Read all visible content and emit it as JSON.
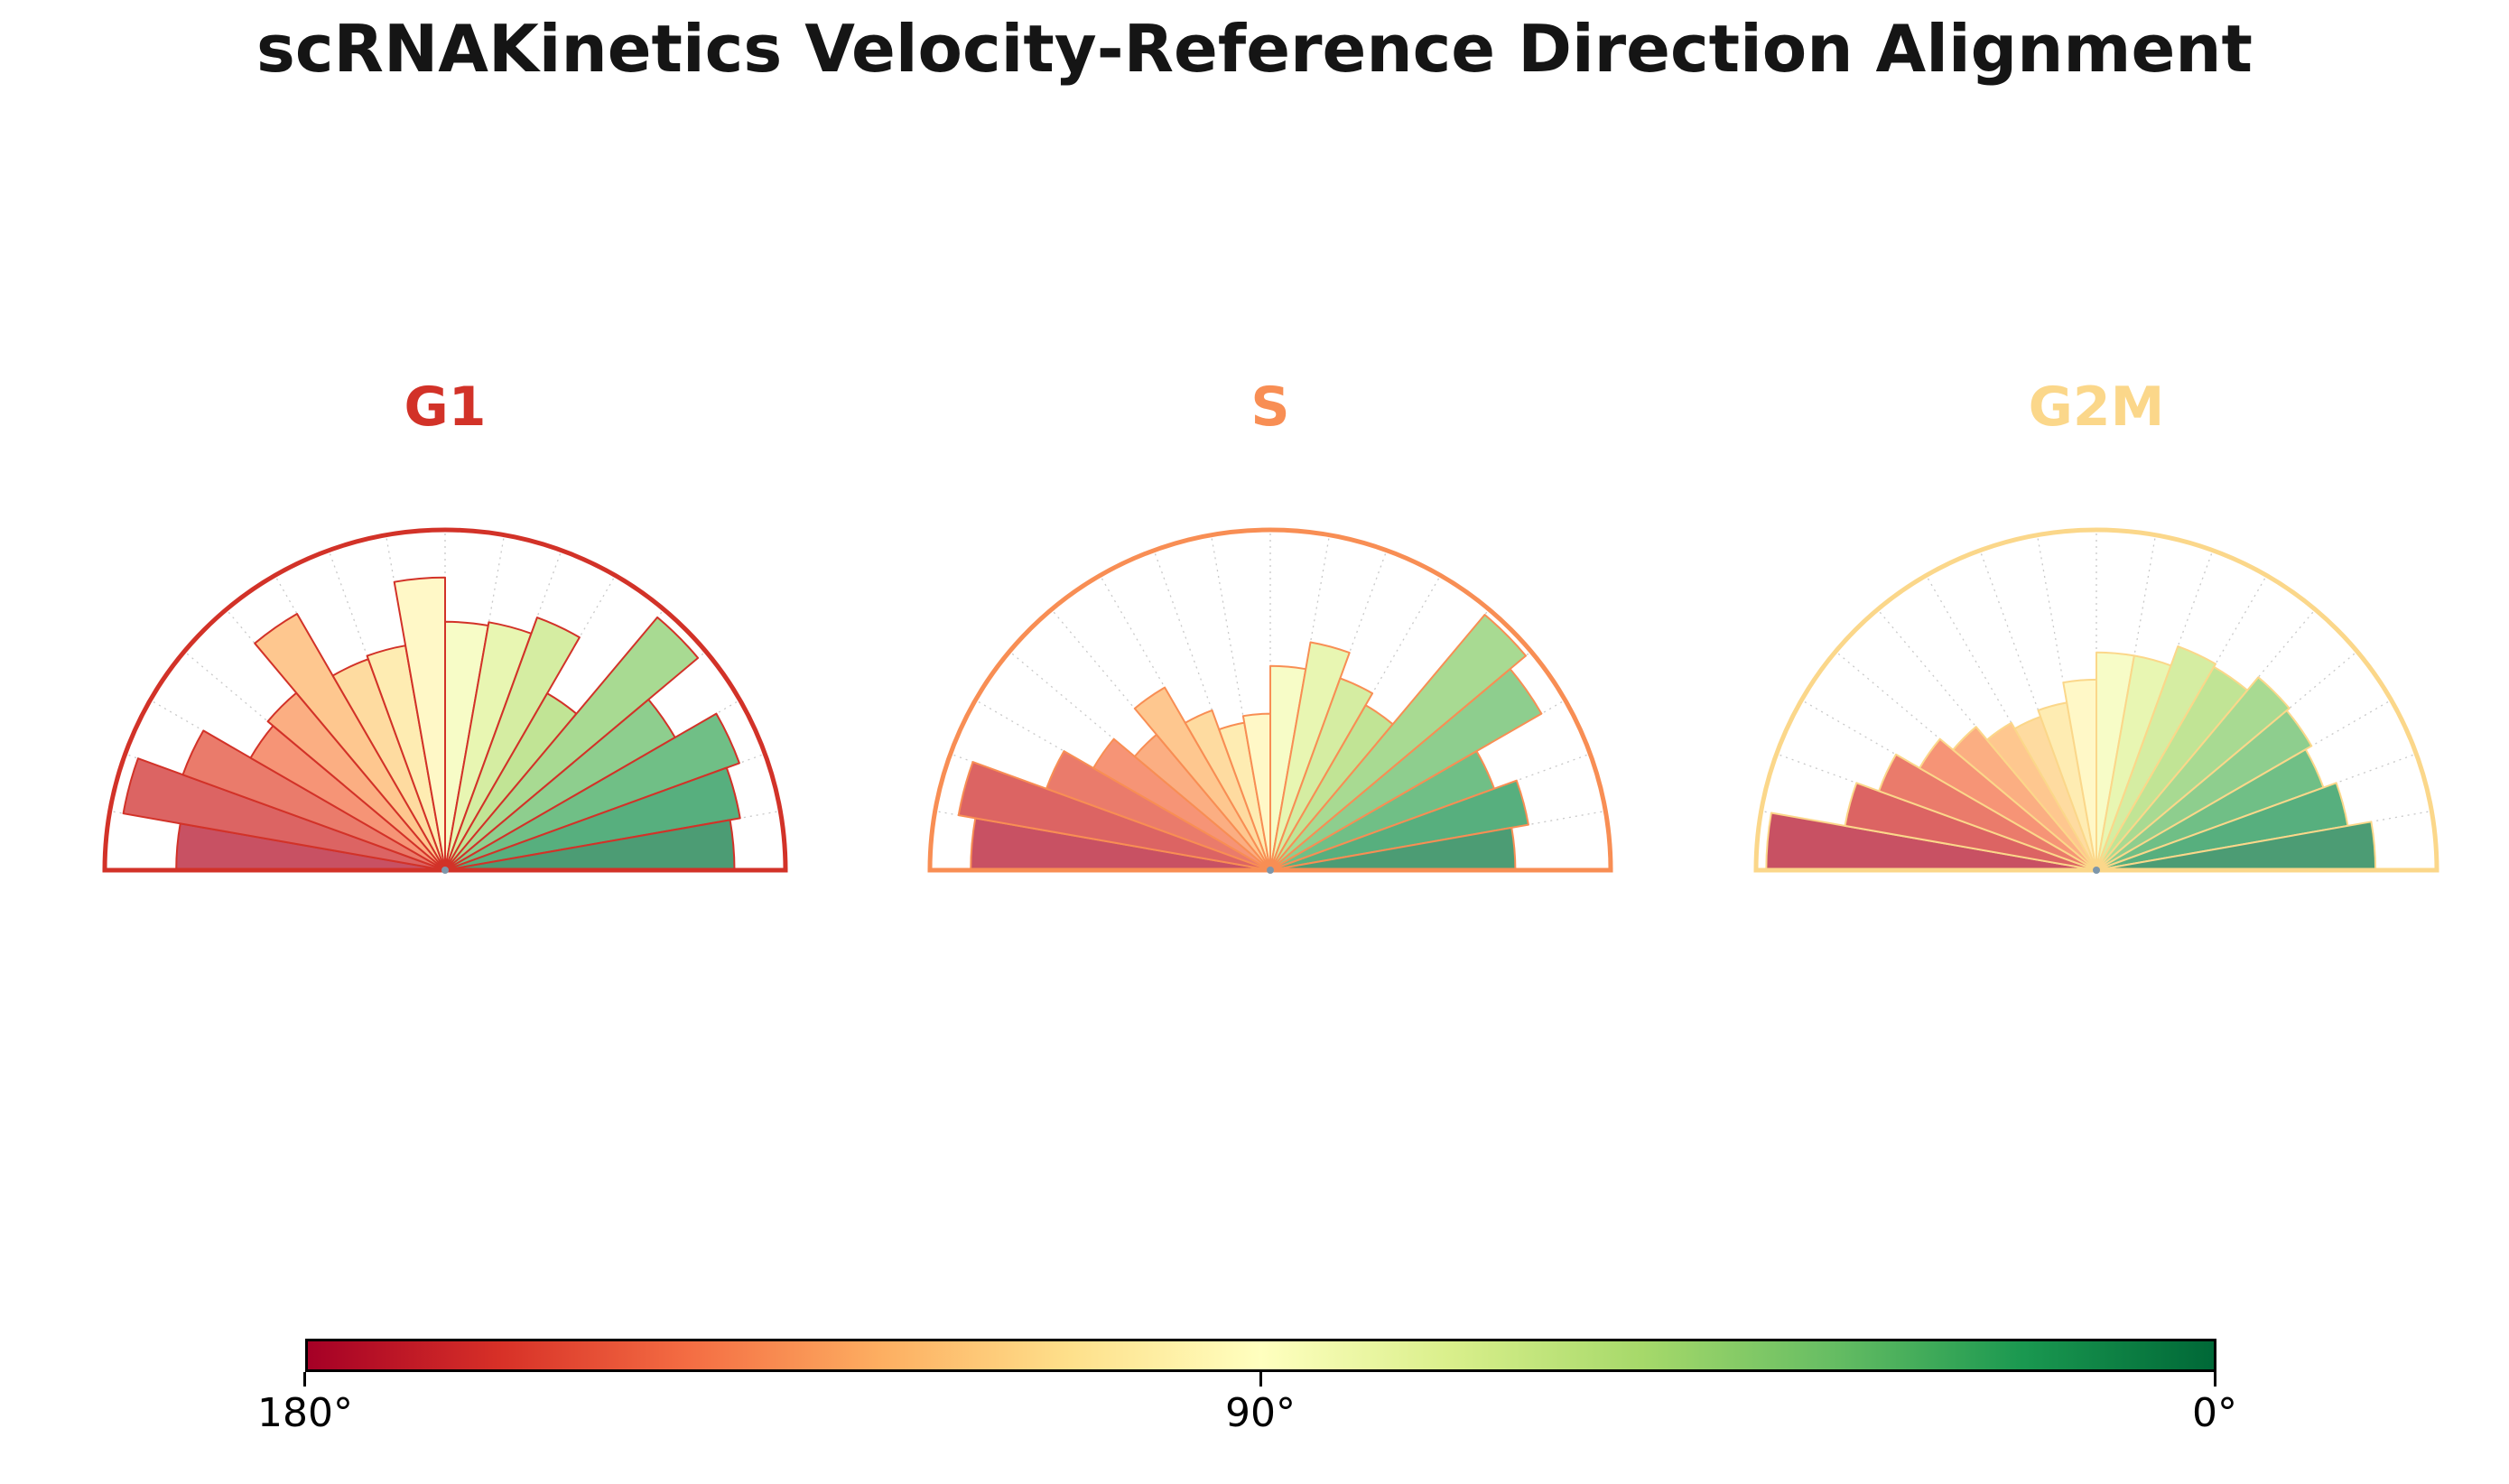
{
  "title": "scRNAKinetics Velocity-Reference Direction Alignment",
  "chart_data": {
    "type": "polar_histogram_half",
    "subtype": "wind-rose of velocity vs reference direction angles, one semicircle per cell-cycle phase",
    "angle_range_deg": [
      0,
      180
    ],
    "bin_width_deg": 10,
    "bin_centers_deg": [
      175,
      165,
      155,
      145,
      135,
      125,
      115,
      105,
      95,
      85,
      75,
      65,
      55,
      45,
      35,
      25,
      15,
      5
    ],
    "panels": [
      {
        "label": "G1",
        "accent_color": "#d23228",
        "values": [
          0.79,
          0.96,
          0.82,
          0.66,
          0.68,
          0.87,
          0.66,
          0.67,
          0.86,
          0.73,
          0.74,
          0.79,
          0.6,
          0.97,
          0.78,
          0.92,
          0.88,
          0.85
        ]
      },
      {
        "label": "S",
        "accent_color": "#f88e54",
        "values": [
          0.88,
          0.93,
          0.7,
          0.6,
          0.52,
          0.62,
          0.5,
          0.44,
          0.46,
          0.6,
          0.68,
          0.6,
          0.56,
          0.98,
          0.92,
          0.7,
          0.77,
          0.72
        ]
      },
      {
        "label": "G2M",
        "accent_color": "#fbd78a",
        "values": [
          0.97,
          0.75,
          0.68,
          0.6,
          0.55,
          0.5,
          0.48,
          0.5,
          0.56,
          0.64,
          0.64,
          0.7,
          0.69,
          0.74,
          0.73,
          0.71,
          0.75,
          0.82
        ]
      }
    ],
    "bar_palette": [
      "#c85163",
      "#dc6463",
      "#ea7b6b",
      "#f69476",
      "#fbae82",
      "#fec78f",
      "#fedba0",
      "#feecb2",
      "#fff8c7",
      "#f7fcc7",
      "#e8f6b2",
      "#d5eda2",
      "#c1e495",
      "#a8da92",
      "#8ece8e",
      "#70bf86",
      "#57af7e",
      "#4c9c74"
    ],
    "colormap": "RdYlGn mapped to angle (180° = red, 0° = green)",
    "grid_on": true,
    "grid_color": "#c8c8c8",
    "origin_dot_color": "#7d96aa"
  },
  "colorbar": {
    "stops": [
      "#a50026",
      "#d73027",
      "#f46d43",
      "#fdae61",
      "#fee08b",
      "#ffffbf",
      "#d9ef8b",
      "#a6d96a",
      "#66bd63",
      "#1a9850",
      "#006837"
    ],
    "tick_labels": [
      "180°",
      "90°",
      "0°"
    ],
    "border_color": "#000000"
  }
}
